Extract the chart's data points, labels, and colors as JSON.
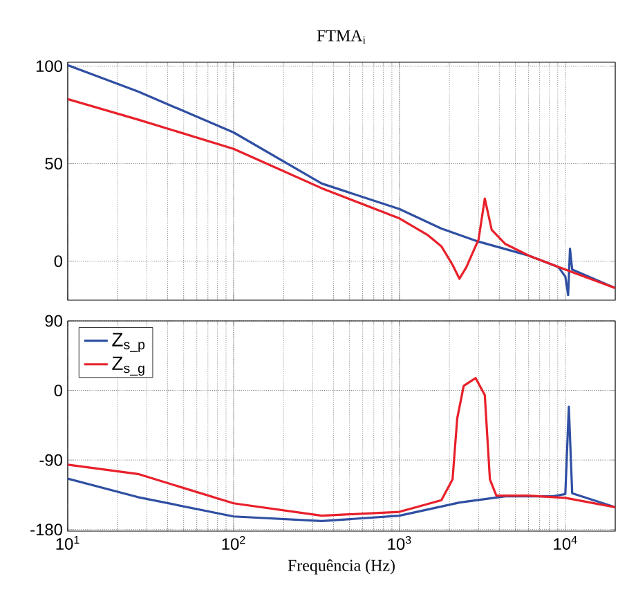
{
  "chart_data": [
    {
      "type": "line",
      "title": "FTMA$_{i}$",
      "log": "x",
      "grid": true,
      "tick_labels": "y",
      "legend": false,
      "xlim": [
        10,
        20000
      ],
      "ylim": [
        -20,
        102
      ],
      "xticks": [
        {
          "value": 10,
          "label": null
        },
        {
          "value": 100,
          "label": null
        },
        {
          "value": 1000,
          "label": null
        },
        {
          "value": 10000,
          "label": null
        }
      ],
      "yticks": [
        0,
        50,
        100
      ],
      "series": [
        {
          "color": "#2f4fa2",
          "x": [
            10,
            26.5,
            100,
            340,
            1000,
            1790,
            3000,
            6000,
            9100,
            10000,
            10400,
            10670,
            11000,
            20000
          ],
          "values": [
            100.5,
            87,
            66,
            39.8,
            26.7,
            16.7,
            10,
            2.9,
            -3.1,
            -7.9,
            -17.4,
            6.4,
            -4.3,
            -13.8
          ]
        },
        {
          "color": "#e8202a",
          "x": [
            10,
            26.5,
            100,
            340,
            1000,
            1470,
            1790,
            2090,
            2300,
            2530,
            3000,
            3270,
            3600,
            4350,
            6000,
            10000,
            20000
          ],
          "values": [
            83.1,
            72.6,
            57.6,
            37.4,
            21.9,
            13.6,
            7.6,
            -1.9,
            -9,
            -3.1,
            11.2,
            32.1,
            16,
            8.8,
            2.9,
            -4.3,
            -13.8
          ]
        }
      ]
    },
    {
      "type": "line",
      "xlabel": "Frequência  (Hz)",
      "log": "x",
      "grid": true,
      "legend": "top left",
      "xlim": [
        10,
        20000
      ],
      "ylim": [
        -182,
        90
      ],
      "xticks": [
        {
          "value": 10,
          "label": "10$^{1}$"
        },
        {
          "value": 100,
          "label": "10$^{2}$"
        },
        {
          "value": 1000,
          "label": "10$^{3}$"
        },
        {
          "value": 10000,
          "label": "10$^{4}$"
        }
      ],
      "yticks": [
        90,
        0,
        -90,
        -180
      ],
      "series": [
        {
          "name": "Z$_{s_p}$",
          "color": "#2f4fa2",
          "x": [
            10,
            26.5,
            100,
            340,
            1000,
            2300,
            4350,
            8300,
            10000,
            10500,
            11000,
            20000
          ],
          "values": [
            -114,
            -138,
            -163,
            -169,
            -162,
            -145,
            -137,
            -137,
            -134,
            -21,
            -133,
            -151
          ]
        },
        {
          "name": "Z$_{s_g}$",
          "color": "#e8202a",
          "x": [
            10,
            26.5,
            100,
            340,
            1000,
            1790,
            2090,
            2230,
            2440,
            2880,
            3270,
            3510,
            3840,
            6000,
            10000,
            20000
          ],
          "values": [
            -96,
            -108,
            -146,
            -162,
            -157,
            -142,
            -115,
            -36,
            6,
            16,
            -6,
            -115,
            -136,
            -136,
            -139,
            -151
          ]
        }
      ]
    }
  ]
}
